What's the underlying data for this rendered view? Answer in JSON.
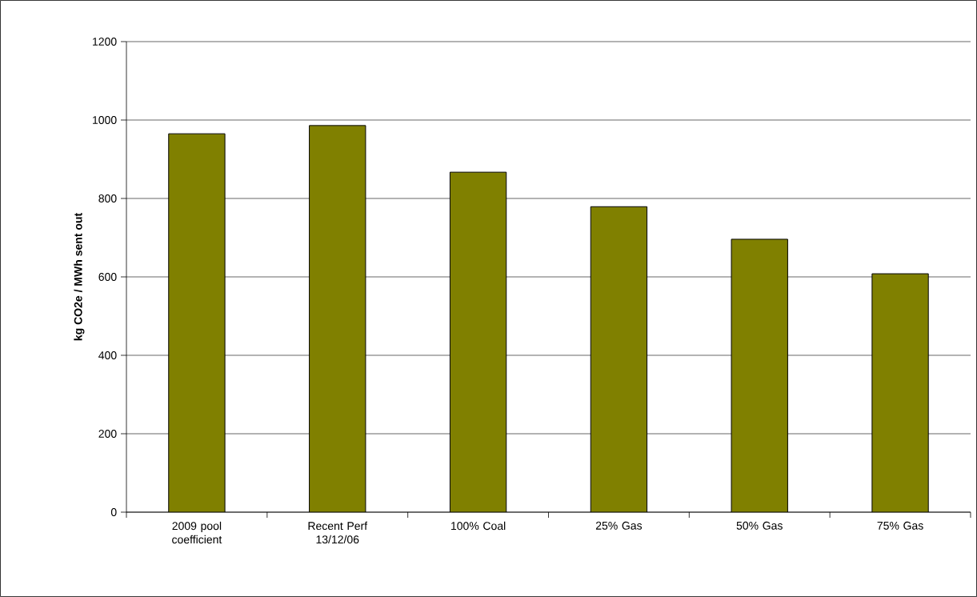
{
  "chart_data": {
    "type": "bar",
    "ylabel": "kg CO2e / MWh sent out",
    "categories": [
      "2009 pool coefficient",
      "Recent Perf 13/12/06",
      "100% Coal",
      "25% Gas",
      "50% Gas",
      "75% Gas"
    ],
    "values": [
      965,
      986,
      867,
      779,
      696,
      608
    ],
    "color": "#808000",
    "ylim": [
      0,
      1200
    ],
    "yticks": [
      0,
      200,
      400,
      600,
      800,
      1000,
      1200
    ],
    "grid": "y"
  }
}
